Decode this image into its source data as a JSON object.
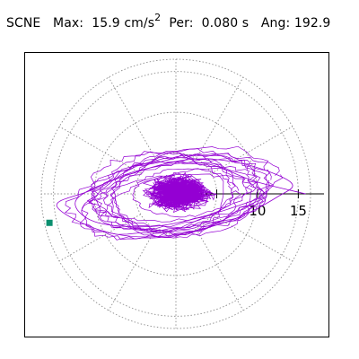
{
  "header": {
    "station": "SCNE",
    "max_label": "Max:",
    "max_value": "15.9",
    "max_unit": "cm/s",
    "max_unit_exp": "2",
    "per_label": "Per:",
    "per_value": "0.080 s",
    "ang_label": "Ang:",
    "ang_value": "192.9"
  },
  "colors": {
    "trace": "#9400d3",
    "marker": "#0b8f6f",
    "grid": "#8c8c8c",
    "frame": "#000000"
  },
  "chart_data": {
    "type": "scatter",
    "title": "",
    "xlabel": "",
    "ylabel": "",
    "polar": true,
    "unit": "cm/s^2",
    "ring_values": [
      5,
      10,
      15
    ],
    "tick_labels": [
      "10",
      "15"
    ],
    "spoke_step_deg": 30,
    "grid": true,
    "rmax_extent": 16.5,
    "peak": {
      "magnitude": 15.9,
      "angle_deg": 192.9,
      "marker": "square"
    },
    "trace_description_points": {
      "x": [
        15.9,
        9.8,
        3.0,
        -4.8,
        -10.5,
        -14.6,
        -8.8,
        -1.6,
        6.3,
        12.4,
        14.1,
        8.2,
        1.5,
        -6.5,
        -12.2,
        -10.0,
        -3.0,
        4.0,
        11.0
      ],
      "y": [
        0.0,
        1.5,
        3.8,
        2.8,
        0.4,
        -1.5,
        -4.6,
        -5.2,
        -3.4,
        -0.4,
        1.4,
        3.7,
        4.2,
        2.1,
        -0.7,
        -3.4,
        -4.0,
        -2.6,
        -0.3
      ]
    }
  }
}
